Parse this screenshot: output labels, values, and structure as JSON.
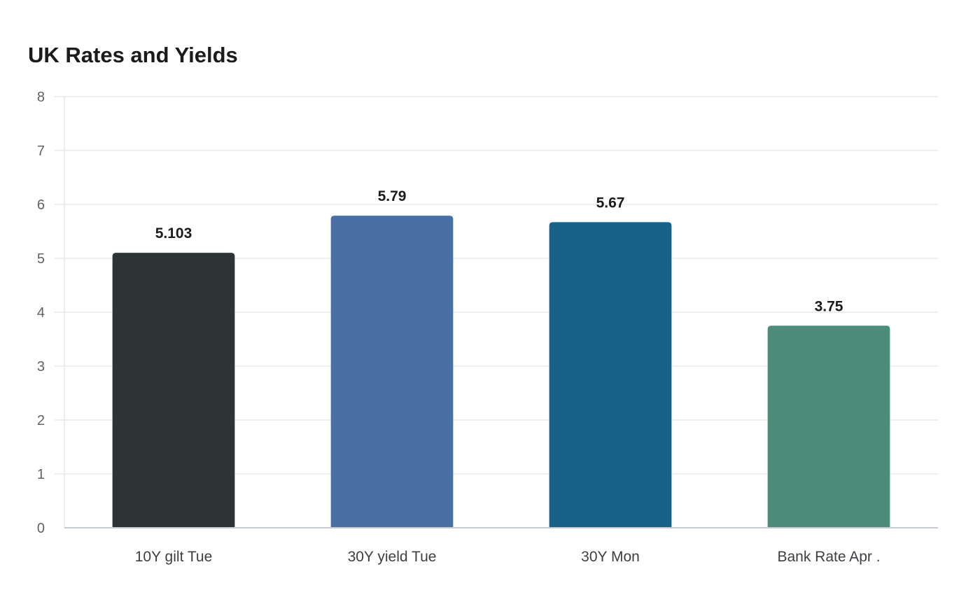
{
  "chart_data": {
    "type": "bar",
    "title": "UK Rates and Yields",
    "xlabel": "",
    "ylabel": "",
    "categories": [
      "10Y gilt Tue",
      "30Y yield Tue",
      "30Y Mon",
      "Bank Rate Apr ."
    ],
    "values": [
      5.103,
      5.79,
      5.67,
      3.75
    ],
    "value_labels": [
      "5.103",
      "5.79",
      "5.67",
      "3.75"
    ],
    "ylim": [
      0,
      8
    ],
    "yticks": [
      0,
      1,
      2,
      3,
      4,
      5,
      6,
      7,
      8
    ],
    "grid": true,
    "legend": "none",
    "bar_colors": [
      "#2d3436",
      "#4a6fa5",
      "#186189",
      "#4e8c7a"
    ]
  }
}
